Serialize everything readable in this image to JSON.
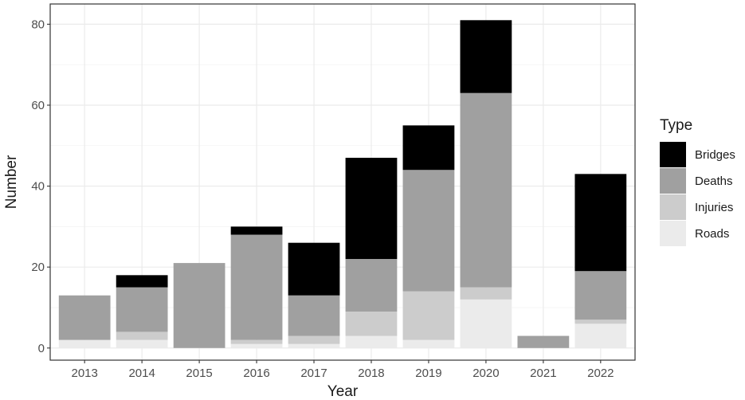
{
  "chart_data": {
    "type": "bar",
    "stacked": true,
    "xlabel": "Year",
    "ylabel": "Number",
    "ylim": [
      -3,
      85
    ],
    "yticks": [
      0,
      20,
      40,
      60,
      80
    ],
    "grid": true,
    "legend_position": "right",
    "legend_title": "Type",
    "categories": [
      "2013",
      "2014",
      "2015",
      "2016",
      "2017",
      "2018",
      "2019",
      "2020",
      "2021",
      "2022"
    ],
    "series": [
      {
        "name": "Roads",
        "color": "#ebebeb",
        "values": [
          2,
          2,
          0,
          1,
          1,
          3,
          2,
          12,
          0,
          6
        ]
      },
      {
        "name": "Injuries",
        "color": "#cccccc",
        "values": [
          0,
          2,
          0,
          1,
          2,
          6,
          12,
          3,
          0,
          1
        ]
      },
      {
        "name": "Deaths",
        "color": "#a0a0a0",
        "values": [
          11,
          11,
          21,
          26,
          10,
          13,
          30,
          48,
          3,
          12
        ]
      },
      {
        "name": "Bridges",
        "color": "#000000",
        "values": [
          0,
          3,
          0,
          2,
          13,
          25,
          11,
          18,
          0,
          24
        ]
      }
    ],
    "legend_order": [
      "Bridges",
      "Deaths",
      "Injuries",
      "Roads"
    ]
  }
}
